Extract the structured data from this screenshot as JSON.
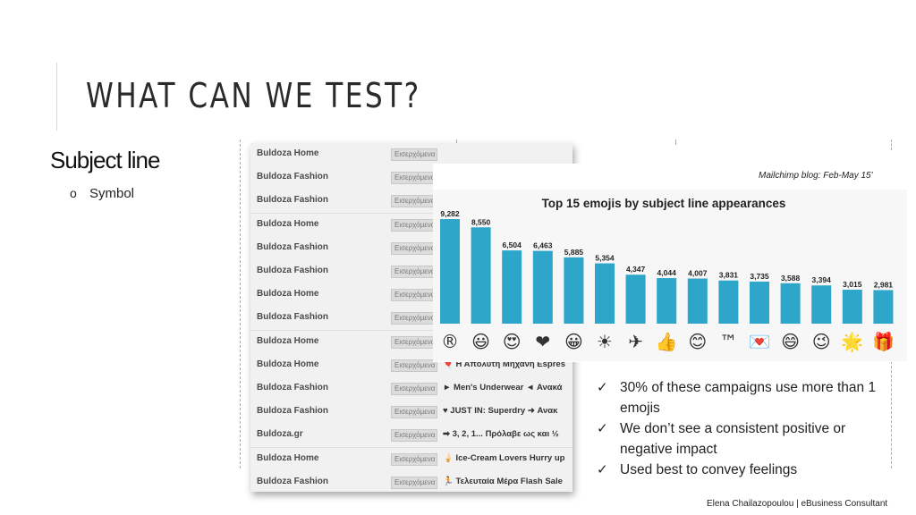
{
  "slide": {
    "title": "WHAT CAN WE TEST?",
    "subtitle": "Subject line",
    "bullet_mark": "o",
    "bullet": "Symbol",
    "footer": "Elena Chailazopoulou | eBusiness Consultant"
  },
  "inbox": {
    "rows": [
      {
        "from": "Buldoza Home",
        "folder": "Εισερχόμενα",
        "subject": ""
      },
      {
        "from": "Buldoza Fashion",
        "folder": "Εισερχόμενα",
        "subject": ""
      },
      {
        "from": "Buldoza Fashion",
        "folder": "Εισερχόμενα",
        "subject": ""
      },
      {
        "from": "Buldoza Home",
        "folder": "Εισερχόμενα",
        "subject": ""
      },
      {
        "from": "Buldoza Fashion",
        "folder": "Εισερχόμενα",
        "subject": ""
      },
      {
        "from": "Buldoza Fashion",
        "folder": "Εισερχόμενα",
        "subject": ""
      },
      {
        "from": "Buldoza Home",
        "folder": "Εισερχόμενα",
        "subject": ""
      },
      {
        "from": "Buldoza Fashion",
        "folder": "Εισερχόμενα",
        "subject": ""
      },
      {
        "from": "Buldoza Home",
        "folder": "Εισερχόμενα",
        "subject": ""
      },
      {
        "from": "Buldoza Home",
        "folder": "Εισερχόμενα",
        "subject": "🎈 Η Απόλυτη Μηχανή Espres"
      },
      {
        "from": "Buldoza Fashion",
        "folder": "Εισερχόμενα",
        "subject": "► Men's Underwear ◄ Ανακά"
      },
      {
        "from": "Buldoza Fashion",
        "folder": "Εισερχόμενα",
        "subject": "♥ JUST IN: Superdry ➜ Ανακ"
      },
      {
        "from": "Buldoza.gr",
        "folder": "Εισερχόμενα",
        "subject": "➡ 3, 2, 1... Πρόλαβε ως και ½"
      },
      {
        "from": "Buldoza Home",
        "folder": "Εισερχόμενα",
        "subject": "🍦 Ice-Cream Lovers Hurry up"
      },
      {
        "from": "Buldoza Fashion",
        "folder": "Εισερχόμενα",
        "subject": "🏃 Τελευταία Μέρα Flash Sale"
      }
    ]
  },
  "chart_source": "Mailchimp blog: Feb-May 15'",
  "chart_data": {
    "type": "bar",
    "title": "Top 15 emojis by subject line appearances",
    "categories": [
      "®",
      "😃",
      "😍",
      "❤",
      "😀",
      "☀",
      "✈",
      "👍",
      "😊",
      "™",
      "💌",
      "😄",
      "😉",
      "🌟",
      "🎁"
    ],
    "values": [
      9282,
      8550,
      6504,
      6463,
      5885,
      5354,
      4347,
      4044,
      4007,
      3831,
      3735,
      3588,
      3394,
      3015,
      2981
    ],
    "value_labels": [
      "9,282",
      "8,550",
      "6,504",
      "6,463",
      "5,885",
      "5,354",
      "4,347",
      "4,044",
      "4,007",
      "3,831",
      "3,735",
      "3,588",
      "3,394",
      "3,015",
      "2,981"
    ],
    "xlabel": "",
    "ylabel": "",
    "ylim": [
      0,
      10000
    ],
    "grid": false,
    "bar_color": "#2ea6c9",
    "text_color": "#222222"
  },
  "checks": [
    "30% of these campaigns use more than 1 emojis",
    "We don’t see a consistent positive or negative impact",
    "Used best to convey feelings"
  ]
}
